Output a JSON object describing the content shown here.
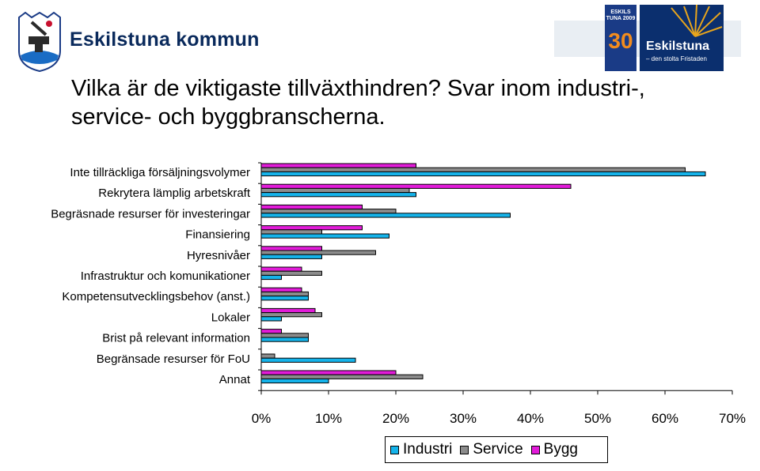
{
  "header": {
    "brand": "Eskilstuna kommun",
    "logo30_text": "ESKILS TUNA 2009",
    "logo30_number": "30",
    "logo_name": "Eskilstuna",
    "logo_tagline": "– den stolta Fristaden"
  },
  "title": "Vilka är de viktigaste tillväxthindren? Svar inom industri-, service- och byggbranscherna.",
  "colors": {
    "Industri": "#15b3ea",
    "Service": "#8c8c8c",
    "Bygg": "#e21bd9"
  },
  "chart_data": {
    "type": "bar",
    "orientation": "horizontal",
    "categories": [
      "Inte tillräckliga försäljningsvolymer",
      "Rekrytera lämplig arbetskraft",
      "Begräsnade resurser för investeringar",
      "Finansiering",
      "Hyresnivåer",
      "Infrastruktur och komunikationer",
      "Kompetensutvecklingsbehov (anst.)",
      "Lokaler",
      "Brist på relevant information",
      "Begränsade resurser för FoU",
      "Annat"
    ],
    "series": [
      {
        "name": "Bygg",
        "values": [
          23,
          46,
          15,
          15,
          9,
          6,
          6,
          8,
          3,
          0,
          20
        ]
      },
      {
        "name": "Service",
        "values": [
          63,
          22,
          20,
          9,
          17,
          9,
          7,
          9,
          7,
          2,
          24
        ]
      },
      {
        "name": "Industri",
        "values": [
          66,
          23,
          37,
          19,
          9,
          3,
          7,
          3,
          7,
          14,
          10
        ]
      }
    ],
    "xlim": [
      0,
      70
    ],
    "xticks": [
      "0%",
      "10%",
      "20%",
      "30%",
      "40%",
      "50%",
      "60%",
      "70%"
    ],
    "legend": [
      "Industri",
      "Service",
      "Bygg"
    ],
    "legend_position": "bottom",
    "grid": false
  }
}
